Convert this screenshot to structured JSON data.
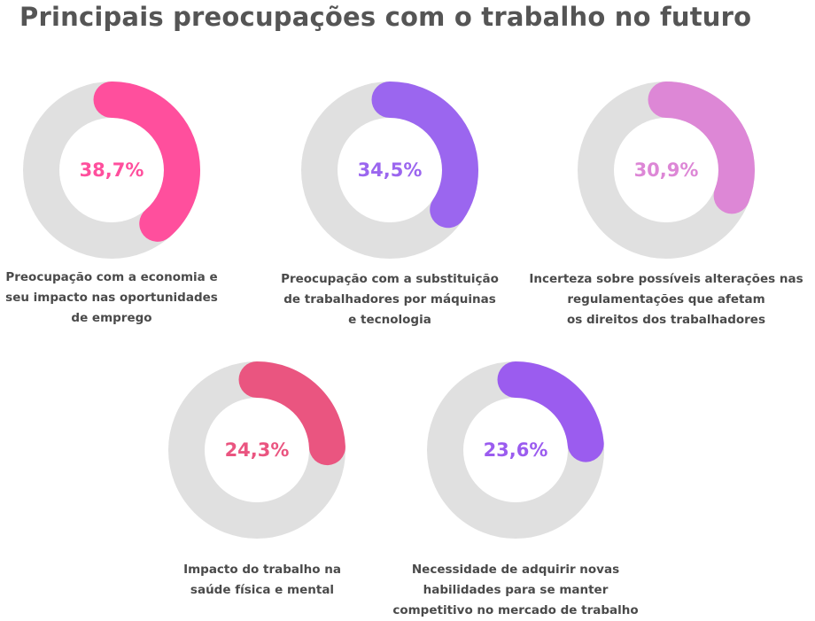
{
  "title": "Principais preocupações com o trabalho no futuro",
  "chart_data": {
    "type": "donut",
    "title": "Principais preocupações com o trabalho no futuro",
    "track_color": "#e0e0e0",
    "items": [
      {
        "value": 38.7,
        "value_label": "38,7%",
        "color": "#ff4f9d",
        "caption": [
          "Preocupação com a economia e",
          "seu impacto nas oportunidades",
          "de emprego"
        ]
      },
      {
        "value": 34.5,
        "value_label": "34,5%",
        "color": "#9b66ef",
        "caption": [
          "Preocupação com a substituição",
          "de trabalhadores por máquinas",
          "e tecnologia"
        ]
      },
      {
        "value": 30.9,
        "value_label": "30,9%",
        "color": "#dd87d6",
        "caption": [
          "Incerteza sobre possíveis alterações nas",
          "regulamentações que afetam",
          "os direitos dos trabalhadores"
        ]
      },
      {
        "value": 24.3,
        "value_label": "24,3%",
        "color": "#ea5580",
        "caption": [
          "Impacto do trabalho na",
          "saúde física e mental"
        ]
      },
      {
        "value": 23.6,
        "value_label": "23,6%",
        "color": "#9b5cef",
        "caption": [
          "Necessidade de adquirir novas",
          "habilidades para se manter",
          "competitivo no mercado de trabalho"
        ]
      }
    ]
  }
}
